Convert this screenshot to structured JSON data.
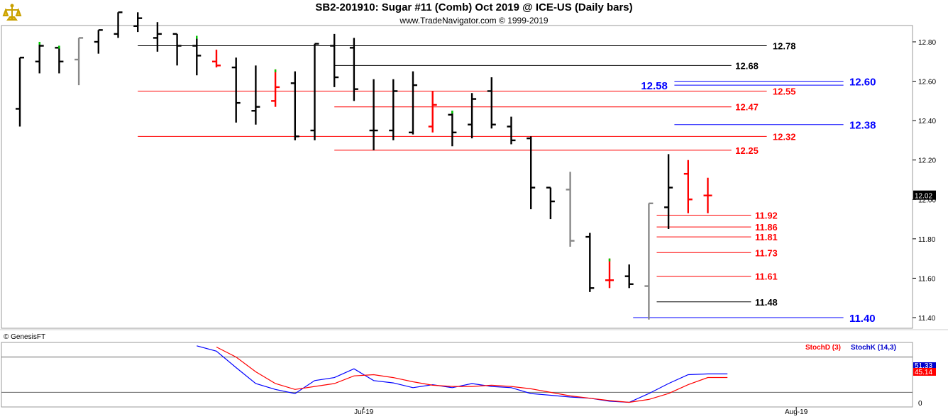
{
  "header": {
    "title": "SB2-201910:  Sugar #11 (Comb) Oct 2019 @ ICE-US  (Daily bars)",
    "subtitle": "www.TradeNavigator.com © 1999-2019",
    "copyright": "© GenesisFT"
  },
  "colors": {
    "up": "#000000",
    "down": "#000000",
    "red": "#ff0000",
    "gray": "#888888",
    "green": "#00cc00",
    "blue": "#0000ff",
    "navy": "#000099",
    "stochD": "#ff0000",
    "stochK": "#0000cc"
  },
  "chart_data": [
    {
      "type": "ohlc",
      "title": "SB2-201910:  Sugar #11 (Comb) Oct 2019 @ ICE-US  (Daily bars)",
      "ylim": [
        11.3,
        12.93
      ],
      "yticks": [
        "12.80",
        "12.60",
        "12.40",
        "12.20",
        "12.00",
        "11.80",
        "11.60",
        "11.40"
      ],
      "xlabels": [
        {
          "label": "Jul-19",
          "bar": 17.5
        },
        {
          "label": "Aug-19",
          "bar": 39.5
        }
      ],
      "last_price": "12.02",
      "bars": [
        {
          "o": 12.46,
          "h": 12.72,
          "l": 12.37,
          "c": 12.72,
          "col": "black"
        },
        {
          "o": 12.7,
          "h": 12.8,
          "l": 12.64,
          "c": 12.78,
          "col": "black",
          "tick": "green"
        },
        {
          "o": 12.77,
          "h": 12.78,
          "l": 12.64,
          "c": 12.7,
          "col": "black",
          "tick": "green"
        },
        {
          "o": 12.71,
          "h": 12.82,
          "l": 12.58,
          "c": 12.82,
          "col": "gray"
        },
        {
          "o": 12.8,
          "h": 12.86,
          "l": 12.74,
          "c": 12.86,
          "col": "black"
        },
        {
          "o": 12.84,
          "h": 12.95,
          "l": 12.82,
          "c": 12.95,
          "col": "black"
        },
        {
          "o": 12.88,
          "h": 12.95,
          "l": 12.85,
          "c": 12.92,
          "col": "black"
        },
        {
          "o": 12.82,
          "h": 12.9,
          "l": 12.75,
          "c": 12.84,
          "col": "black"
        },
        {
          "o": 12.84,
          "h": 12.84,
          "l": 12.68,
          "c": 12.78,
          "col": "black"
        },
        {
          "o": 12.78,
          "h": 12.83,
          "l": 12.63,
          "c": 12.73,
          "col": "black",
          "tick": "green"
        },
        {
          "o": 12.7,
          "h": 12.76,
          "l": 12.67,
          "c": 12.68,
          "col": "red"
        },
        {
          "o": 12.67,
          "h": 12.72,
          "l": 12.39,
          "c": 12.49,
          "col": "black"
        },
        {
          "o": 12.45,
          "h": 12.68,
          "l": 12.38,
          "c": 12.47,
          "col": "black"
        },
        {
          "o": 12.5,
          "h": 12.66,
          "l": 12.47,
          "c": 12.57,
          "col": "red",
          "tick": "green"
        },
        {
          "o": 12.59,
          "h": 12.65,
          "l": 12.3,
          "c": 12.32,
          "col": "black"
        },
        {
          "o": 12.35,
          "h": 12.79,
          "l": 12.3,
          "c": 12.79,
          "col": "black"
        },
        {
          "o": 12.78,
          "h": 12.84,
          "l": 12.57,
          "c": 12.62,
          "col": "black"
        },
        {
          "o": 12.77,
          "h": 12.82,
          "l": 12.5,
          "c": 12.56,
          "col": "black"
        },
        {
          "o": 12.35,
          "h": 12.61,
          "l": 12.25,
          "c": 12.35,
          "col": "black"
        },
        {
          "o": 12.35,
          "h": 12.61,
          "l": 12.3,
          "c": 12.55,
          "col": "black"
        },
        {
          "o": 12.34,
          "h": 12.65,
          "l": 12.33,
          "c": 12.58,
          "col": "black"
        },
        {
          "o": 12.37,
          "h": 12.55,
          "l": 12.34,
          "c": 12.48,
          "col": "red"
        },
        {
          "o": 12.43,
          "h": 12.45,
          "l": 12.27,
          "c": 12.34,
          "col": "black",
          "tick": "green"
        },
        {
          "o": 12.38,
          "h": 12.54,
          "l": 12.31,
          "c": 12.51,
          "col": "black"
        },
        {
          "o": 12.55,
          "h": 12.62,
          "l": 12.36,
          "c": 12.38,
          "col": "black"
        },
        {
          "o": 12.37,
          "h": 12.42,
          "l": 12.28,
          "c": 12.3,
          "col": "black"
        },
        {
          "o": 12.31,
          "h": 12.32,
          "l": 11.95,
          "c": 12.06,
          "col": "black"
        },
        {
          "o": 12.06,
          "h": 12.06,
          "l": 11.9,
          "c": 11.99,
          "col": "black"
        },
        {
          "o": 12.05,
          "h": 12.14,
          "l": 11.76,
          "c": 11.79,
          "col": "gray"
        },
        {
          "o": 11.81,
          "h": 11.83,
          "l": 11.53,
          "c": 11.55,
          "col": "black"
        },
        {
          "o": 11.59,
          "h": 11.7,
          "l": 11.55,
          "c": 11.59,
          "col": "red",
          "tick": "green"
        },
        {
          "o": 11.61,
          "h": 11.67,
          "l": 11.55,
          "c": 11.57,
          "col": "black"
        },
        {
          "o": 11.56,
          "h": 11.98,
          "l": 11.39,
          "c": 11.98,
          "col": "gray"
        },
        {
          "o": 11.96,
          "h": 12.23,
          "l": 11.85,
          "c": 12.06,
          "col": "black"
        },
        {
          "o": 12.13,
          "h": 12.2,
          "l": 11.93,
          "c": 12.0,
          "col": "red"
        },
        {
          "o": 12.02,
          "h": 12.11,
          "l": 11.93,
          "c": 12.02,
          "col": "red"
        }
      ],
      "levels": [
        {
          "value": 12.78,
          "label": "12.78",
          "color": "black",
          "from_bar": 6,
          "to_bar": 38,
          "label_bar": 38.3
        },
        {
          "value": 12.68,
          "label": "12.68",
          "color": "black",
          "from_bar": 16,
          "to_bar": 36.2,
          "label_bar": 36.4
        },
        {
          "value": 12.58,
          "label": "12.58",
          "color": "blue",
          "from_bar": 33.3,
          "to_bar": 41.9,
          "label_bar": 31.6,
          "big": true
        },
        {
          "value": 12.6,
          "label": "12.60",
          "color": "blue",
          "from_bar": 33.3,
          "to_bar": 41.9,
          "label_bar": 42.2,
          "big": true
        },
        {
          "value": 12.55,
          "label": "12.55",
          "color": "red",
          "from_bar": 6,
          "to_bar": 38,
          "label_bar": 38.3
        },
        {
          "value": 12.47,
          "label": "12.47",
          "color": "red",
          "from_bar": 16,
          "to_bar": 36.2,
          "label_bar": 36.4
        },
        {
          "value": 12.38,
          "label": "12.38",
          "color": "blue",
          "from_bar": 33.3,
          "to_bar": 41.9,
          "label_bar": 42.2,
          "big": true
        },
        {
          "value": 12.32,
          "label": "12.32",
          "color": "red",
          "from_bar": 6,
          "to_bar": 38,
          "label_bar": 38.3
        },
        {
          "value": 12.25,
          "label": "12.25",
          "color": "red",
          "from_bar": 16,
          "to_bar": 36.2,
          "label_bar": 36.4
        },
        {
          "value": 11.92,
          "label": "11.92",
          "color": "red",
          "from_bar": 32.4,
          "to_bar": 37.2,
          "label_bar": 37.4
        },
        {
          "value": 11.86,
          "label": "11.86",
          "color": "red",
          "from_bar": 32.4,
          "to_bar": 37.2,
          "label_bar": 37.4
        },
        {
          "value": 11.81,
          "label": "11.81",
          "color": "red",
          "from_bar": 32.4,
          "to_bar": 37.2,
          "label_bar": 37.4
        },
        {
          "value": 11.73,
          "label": "11.73",
          "color": "red",
          "from_bar": 32.4,
          "to_bar": 37.2,
          "label_bar": 37.4
        },
        {
          "value": 11.61,
          "label": "11.61",
          "color": "red",
          "from_bar": 32.4,
          "to_bar": 37.2,
          "label_bar": 37.4
        },
        {
          "value": 11.48,
          "label": "11.48",
          "color": "black",
          "from_bar": 32.4,
          "to_bar": 37.2,
          "label_bar": 37.4
        },
        {
          "value": 11.4,
          "label": "11.40",
          "color": "blue",
          "from_bar": 31.2,
          "to_bar": 41.9,
          "label_bar": 42.2,
          "big": true
        }
      ]
    },
    {
      "type": "line",
      "legend": [
        {
          "name": "StochD (3)",
          "color": "red"
        },
        {
          "name": "StochK (14,3)",
          "color": "blue"
        }
      ],
      "ylim": [
        0,
        100
      ],
      "ytick": "0",
      "reference_lines": [
        20,
        80
      ],
      "values_shown": [
        "51.33",
        "45.14"
      ],
      "series": [
        {
          "name": "StochK (14,3)",
          "color": "blue",
          "x": [
            9,
            10,
            11,
            12,
            13,
            14,
            15,
            16,
            17,
            18,
            19,
            20,
            21,
            22,
            23,
            24,
            25,
            26,
            27,
            28,
            29,
            30,
            31,
            32,
            33,
            34,
            35,
            36
          ],
          "values": [
            99,
            90,
            62,
            35,
            25,
            18,
            40,
            45,
            60,
            40,
            36,
            28,
            33,
            28,
            35,
            30,
            28,
            18,
            15,
            12,
            10,
            5,
            3,
            18,
            35,
            50,
            51.33,
            51.33
          ]
        },
        {
          "name": "StochD (3)",
          "color": "red",
          "x": [
            10,
            11,
            12,
            13,
            14,
            15,
            16,
            17,
            18,
            19,
            20,
            21,
            22,
            23,
            24,
            25,
            26,
            27,
            28,
            29,
            30,
            31,
            32,
            33,
            34,
            35,
            36
          ],
          "values": [
            97,
            80,
            55,
            35,
            25,
            30,
            35,
            48,
            50,
            45,
            38,
            32,
            30,
            30,
            32,
            30,
            26,
            20,
            14,
            10,
            6,
            3,
            8,
            18,
            33,
            45.14,
            45.14
          ]
        }
      ]
    }
  ]
}
